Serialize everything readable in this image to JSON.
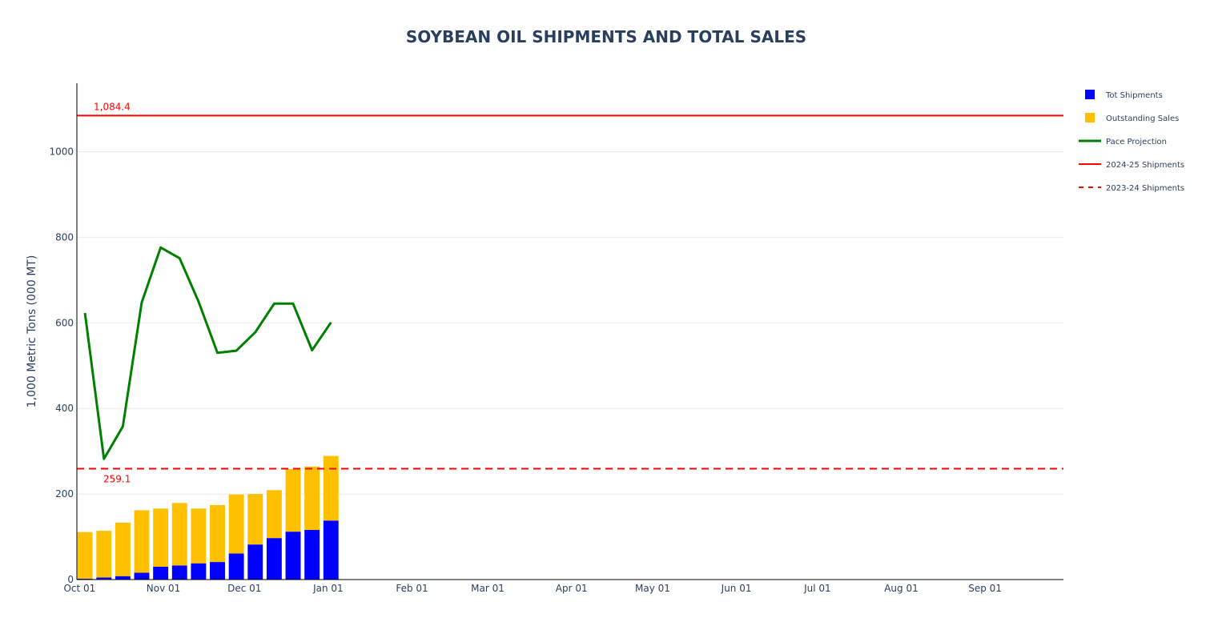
{
  "chart_data": {
    "type": "bar",
    "title": "SOYBEAN OIL SHIPMENTS AND TOTAL SALES",
    "xlabel": "",
    "ylabel": "1,000 Metric Tons (000 MT)",
    "ylim": [
      0,
      1160
    ],
    "y_ticks": [
      0,
      200,
      400,
      600,
      800,
      1000
    ],
    "y_tick_labels": [
      "0",
      "200",
      "400",
      "600",
      "800",
      "1000"
    ],
    "x_range": [
      "2024-09-30",
      "2025-09-30"
    ],
    "x_ticks": [
      "2024-10-01",
      "2024-11-01",
      "2024-12-01",
      "2025-01-01",
      "2025-02-01",
      "2025-03-01",
      "2025-04-01",
      "2025-05-01",
      "2025-06-01",
      "2025-07-01",
      "2025-08-01",
      "2025-09-01"
    ],
    "x_tick_labels": [
      "Oct 01",
      "Nov 01",
      "Dec 01",
      "Jan 01",
      "Feb 01",
      "Mar 01",
      "Apr 01",
      "May 01",
      "Jun 01",
      "Jul 01",
      "Aug 01",
      "Sep 01"
    ],
    "grid": "horizontal",
    "barmode": "stack",
    "legend_position": "top-right",
    "x": [
      "2024-10-03",
      "2024-10-10",
      "2024-10-17",
      "2024-10-24",
      "2024-10-31",
      "2024-11-07",
      "2024-11-14",
      "2024-11-21",
      "2024-11-28",
      "2024-12-05",
      "2024-12-12",
      "2024-12-19",
      "2024-12-26",
      "2025-01-02"
    ],
    "series": [
      {
        "name": "Tot Shipments",
        "type": "bar",
        "color": "#0000ff",
        "values": [
          2,
          5,
          8,
          16,
          30,
          33,
          38,
          41,
          61,
          82,
          97,
          112,
          116,
          138
        ]
      },
      {
        "name": "Outstanding Sales",
        "type": "bar",
        "color": "#ffc000",
        "values": [
          109,
          109,
          125,
          146,
          136,
          146,
          128,
          133,
          138,
          118,
          112,
          146,
          148,
          151
        ]
      },
      {
        "name": "Pace Projection",
        "type": "line",
        "color": "#008000",
        "values": [
          623,
          282,
          358,
          648,
          776,
          751,
          650,
          530,
          535,
          578,
          645,
          645,
          536,
          601
        ]
      },
      {
        "name": "2024-25 Shipments",
        "type": "hline",
        "color": "#ff0000",
        "dash": "solid",
        "value": 1084.4,
        "label": "1,084.4"
      },
      {
        "name": "2023-24 Shipments",
        "type": "hline",
        "color": "#ff0000",
        "dash": "dashed",
        "value": 259.1,
        "label": "259.1"
      }
    ]
  }
}
